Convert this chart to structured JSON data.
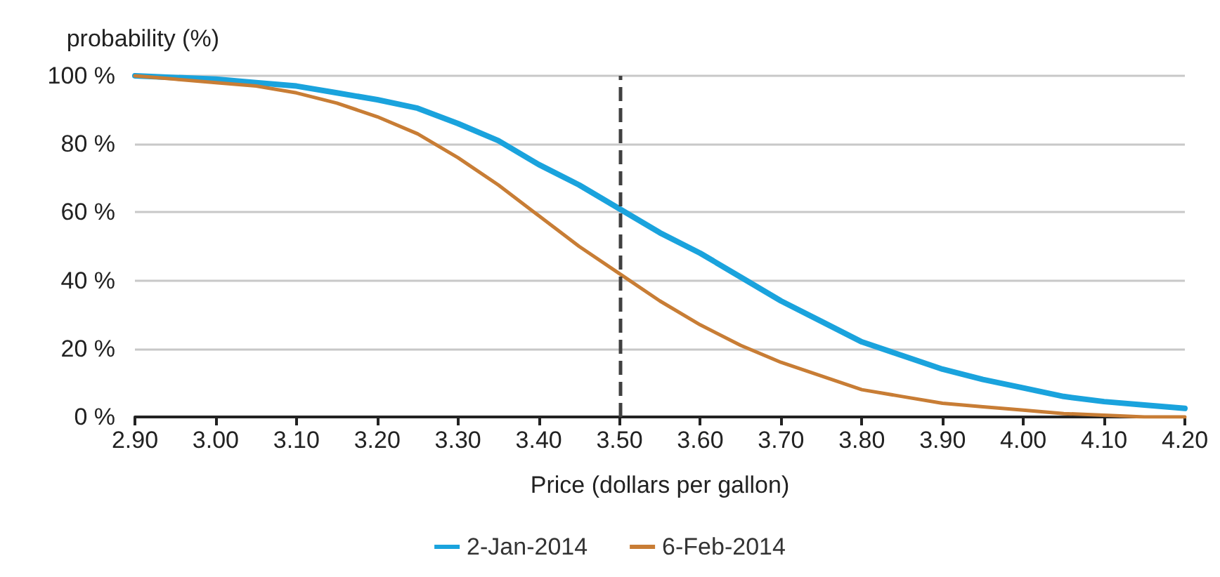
{
  "chart_data": {
    "type": "line",
    "ylabel": "probability (%)",
    "xlabel": "Price (dollars per gallon)",
    "x": [
      2.9,
      2.95,
      3.0,
      3.05,
      3.1,
      3.15,
      3.2,
      3.25,
      3.3,
      3.35,
      3.4,
      3.45,
      3.5,
      3.55,
      3.6,
      3.65,
      3.7,
      3.75,
      3.8,
      3.85,
      3.9,
      3.95,
      4.0,
      4.05,
      4.1,
      4.15,
      4.2
    ],
    "series": [
      {
        "name": "2-Jan-2014",
        "color": "#1aa3dd",
        "values": [
          100,
          99.5,
          99,
          98,
          97,
          95,
          93,
          90.5,
          86,
          81,
          74,
          68,
          61,
          54,
          48,
          41,
          34,
          28,
          22,
          18,
          14,
          11,
          8.5,
          6,
          4.5,
          3.5,
          2.5
        ]
      },
      {
        "name": "6-Feb-2014",
        "color": "#c87d35",
        "values": [
          100,
          99,
          98,
          97,
          95,
          92,
          88,
          83,
          76,
          68,
          59,
          50,
          42,
          34,
          27,
          21,
          16,
          12,
          8,
          6,
          4,
          3,
          2,
          1,
          0.5,
          0,
          0
        ]
      }
    ],
    "xlim": [
      2.9,
      4.2
    ],
    "xticks": [
      {
        "value": 2.9,
        "label": "2.90"
      },
      {
        "value": 3.0,
        "label": "3.00"
      },
      {
        "value": 3.1,
        "label": "3.10"
      },
      {
        "value": 3.2,
        "label": "3.20"
      },
      {
        "value": 3.3,
        "label": "3.30"
      },
      {
        "value": 3.4,
        "label": "3.40"
      },
      {
        "value": 3.5,
        "label": "3.50"
      },
      {
        "value": 3.6,
        "label": "3.60"
      },
      {
        "value": 3.7,
        "label": "3.70"
      },
      {
        "value": 3.8,
        "label": "3.80"
      },
      {
        "value": 3.9,
        "label": "3.90"
      },
      {
        "value": 4.0,
        "label": "4.00"
      },
      {
        "value": 4.1,
        "label": "4.10"
      },
      {
        "value": 4.2,
        "label": "4.20"
      }
    ],
    "ylim": [
      0,
      100
    ],
    "yticks": [
      {
        "value": 0,
        "label": "0 %"
      },
      {
        "value": 20,
        "label": "20 %"
      },
      {
        "value": 40,
        "label": "40 %"
      },
      {
        "value": 60,
        "label": "60 %"
      },
      {
        "value": 80,
        "label": "80 %"
      },
      {
        "value": 100,
        "label": "100 %"
      }
    ],
    "ref_lines": [
      {
        "axis": "x",
        "value": 3.5,
        "color": "#404040",
        "line_style": "dashed"
      }
    ],
    "grid": "y",
    "legend": "bottom",
    "marker": "none",
    "line_style": "solid"
  }
}
